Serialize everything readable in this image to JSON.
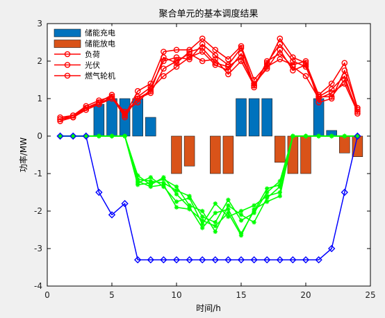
{
  "chart_data": {
    "type": "bar+line",
    "title": "聚合单元的基本调度结果",
    "xlabel": "时间/h",
    "ylabel": "功率/MW",
    "xlim": [
      0,
      25
    ],
    "ylim": [
      -4,
      3
    ],
    "xticks": [
      0,
      5,
      10,
      15,
      20,
      25
    ],
    "yticks": [
      -4,
      -3,
      -2,
      -1,
      0,
      1,
      2,
      3
    ],
    "grid": false,
    "legend_position": "top-left",
    "legend": [
      "储能充电",
      "储能放电",
      "负荷",
      "光伏",
      "燃气轮机"
    ],
    "bar_series": [
      {
        "name": "储能充电",
        "color": "#0072BD",
        "points": [
          [
            4,
            0.85
          ],
          [
            5,
            1.0
          ],
          [
            6,
            1.0
          ],
          [
            7,
            1.0
          ],
          [
            8,
            0.5
          ],
          [
            15,
            1.0
          ],
          [
            16,
            1.0
          ],
          [
            17,
            1.0
          ],
          [
            21,
            1.0
          ],
          [
            22,
            0.15
          ]
        ]
      },
      {
        "name": "储能放电",
        "color": "#D95319",
        "points": [
          [
            10,
            -1.0
          ],
          [
            11,
            -0.8
          ],
          [
            13,
            -1.0
          ],
          [
            14,
            -1.0
          ],
          [
            18,
            -0.7
          ],
          [
            19,
            -1.0
          ],
          [
            20,
            -1.0
          ],
          [
            23,
            -0.45
          ],
          [
            24,
            -0.55
          ]
        ]
      }
    ],
    "red_series": [
      {
        "values": [
          0.45,
          0.5,
          0.75,
          0.9,
          1.1,
          0.55,
          1.2,
          1.4,
          2.25,
          2.3,
          2.3,
          2.6,
          2.3,
          2.05,
          2.4,
          1.5,
          1.9,
          2.6,
          2.1,
          1.95,
          1.1,
          1.4,
          1.95,
          0.75
        ]
      },
      {
        "values": [
          0.45,
          0.5,
          0.7,
          0.85,
          1.05,
          0.5,
          1.05,
          1.3,
          2.0,
          2.1,
          2.05,
          2.45,
          2.15,
          1.9,
          2.35,
          1.35,
          1.95,
          2.45,
          2.0,
          1.85,
          1.05,
          1.25,
          1.6,
          0.6
        ]
      },
      {
        "values": [
          0.5,
          0.55,
          0.8,
          0.95,
          1.05,
          0.6,
          1.0,
          1.2,
          2.1,
          1.95,
          2.25,
          2.35,
          1.95,
          1.85,
          2.1,
          1.4,
          1.8,
          2.3,
          1.75,
          1.9,
          1.05,
          1.05,
          1.5,
          0.7
        ]
      },
      {
        "values": [
          0.4,
          0.5,
          0.75,
          0.9,
          1.0,
          0.6,
          1.0,
          1.15,
          1.8,
          2.0,
          2.2,
          2.0,
          2.05,
          1.65,
          2.0,
          1.35,
          1.85,
          2.05,
          1.9,
          2.0,
          0.9,
          1.0,
          1.75,
          0.75
        ]
      },
      {
        "values": [
          0.45,
          0.55,
          0.75,
          0.85,
          1.0,
          0.65,
          0.9,
          1.25,
          1.6,
          1.85,
          2.1,
          2.25,
          1.9,
          1.75,
          2.2,
          1.3,
          2.0,
          2.2,
          1.85,
          1.6,
          1.0,
          1.15,
          1.4,
          0.65
        ]
      }
    ],
    "green_series": [
      {
        "values": [
          0,
          0,
          0,
          0,
          0,
          0,
          -1.05,
          -1.3,
          -1.1,
          -1.55,
          -1.9,
          -2.45,
          -2.05,
          -1.95,
          -2.6,
          -2.0,
          -1.4,
          -1.3,
          0,
          0,
          0,
          0,
          0,
          0
        ]
      },
      {
        "values": [
          0,
          0,
          0,
          0,
          0,
          0,
          -1.15,
          -1.2,
          -1.25,
          -1.45,
          -1.6,
          -2.15,
          -2.3,
          -1.7,
          -2.25,
          -2.05,
          -1.5,
          -1.2,
          0,
          0,
          0,
          0,
          0,
          0
        ]
      },
      {
        "values": [
          0,
          0,
          0,
          0,
          0,
          0,
          -1.25,
          -1.1,
          -1.35,
          -1.75,
          -1.65,
          -2.35,
          -1.8,
          -2.15,
          -2.0,
          -1.85,
          -1.6,
          -1.5,
          0,
          0,
          0,
          0,
          0,
          0
        ]
      },
      {
        "values": [
          0,
          0,
          0,
          0,
          0,
          0,
          -1.3,
          -1.25,
          -1.15,
          -1.35,
          -1.85,
          -2.0,
          -2.55,
          -1.85,
          -2.1,
          -2.3,
          -1.65,
          -1.35,
          0,
          0,
          0,
          0,
          0,
          0
        ]
      },
      {
        "values": [
          0,
          0,
          0,
          0,
          0,
          0,
          -1.2,
          -1.35,
          -1.3,
          -1.9,
          -1.95,
          -2.25,
          -2.4,
          -2.05,
          -2.65,
          -1.95,
          -1.75,
          -1.6,
          0,
          0,
          0,
          0,
          0,
          0
        ]
      }
    ],
    "blue_series": {
      "values": [
        0,
        0,
        0,
        -1.5,
        -2.1,
        -1.8,
        -3.3,
        -3.3,
        -3.3,
        -3.3,
        -3.3,
        -3.3,
        -3.3,
        -3.3,
        -3.3,
        -3.3,
        -3.3,
        -3.3,
        -3.3,
        -3.3,
        -3.3,
        -3.0,
        -1.5,
        0
      ]
    },
    "colors": {
      "charge_bar": "#0072BD",
      "discharge_bar": "#D95319",
      "red_line": "#FF0000",
      "green_line": "#00FF00",
      "blue_line": "#0000FF",
      "background": "#f0f0f0",
      "plot_bg": "#ffffff"
    }
  }
}
